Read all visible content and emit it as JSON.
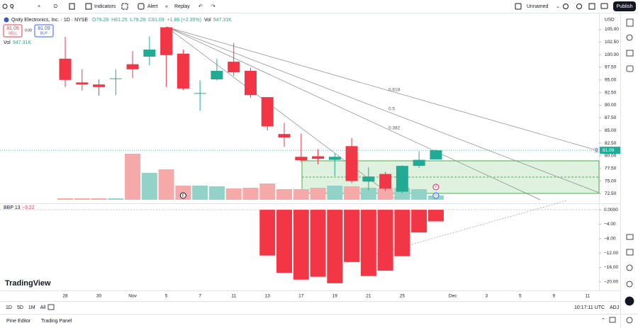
{
  "toolbar": {
    "symbol_search": "Q",
    "interval": "D",
    "indicators": "Indicators",
    "alert": "Alert",
    "replay": "Replay",
    "layout_name": "Unnamed",
    "publish": "Publish"
  },
  "legend": {
    "title": "Qnity Electronics, Inc. · 1D · NYSE",
    "ohlc": [
      "O79.28",
      "H81.25",
      "L79.28",
      "C81.09",
      "+1.86 (+2.35%)"
    ],
    "volume_label": "Vol",
    "volume_value": "947.31K"
  },
  "trade": {
    "sell_price": "81.09",
    "sell": "SELL",
    "spread": "0.00",
    "buy_price": "81.09",
    "buy": "BUY"
  },
  "volume_row": {
    "label": "Vol",
    "value": "947.31K"
  },
  "chart_data": {
    "type": "candlestick",
    "categories": [
      "28",
      null,
      "30",
      null,
      "Nov",
      null,
      "5",
      null,
      "7",
      null,
      "11",
      null,
      "13",
      null,
      "17",
      null,
      "19",
      null,
      "21",
      null,
      "25",
      null,
      null
    ],
    "future_categories": [
      "Dec",
      null,
      "3",
      null,
      "5",
      null,
      "9",
      null,
      "11"
    ],
    "open": [
      99.2,
      94.5,
      94.1,
      95.2,
      98.1,
      99.6,
      105.4,
      100.2,
      92.3,
      95.1,
      98.6,
      96.8,
      91.6,
      84.3,
      79.8,
      79.9,
      79.2,
      81.9,
      74.9,
      76.4,
      72.9,
      78.0,
      79.28
    ],
    "high": [
      103.5,
      97.1,
      95.1,
      97.1,
      100.7,
      103.6,
      105.5,
      101.0,
      94.9,
      99.2,
      102.3,
      97.4,
      91.6,
      86.5,
      84.4,
      81.3,
      80.5,
      83.5,
      77.7,
      76.8,
      78.1,
      80.9,
      81.25
    ],
    "low": [
      93.6,
      92.9,
      91.9,
      92.0,
      95.4,
      97.9,
      93.6,
      93.0,
      88.9,
      94.9,
      95.8,
      91.5,
      85.0,
      81.8,
      78.8,
      78.3,
      76.0,
      74.6,
      73.2,
      73.0,
      72.6,
      77.6,
      79.28
    ],
    "close": [
      95.0,
      94.1,
      93.6,
      95.3,
      97.1,
      101.0,
      99.9,
      93.3,
      92.4,
      96.8,
      96.5,
      92.0,
      85.8,
      83.6,
      79.1,
      79.4,
      79.8,
      75.0,
      75.9,
      73.5,
      78.0,
      79.2,
      81.09
    ],
    "volume": [
      316000,
      316000,
      316000,
      316000,
      10263000,
      6000000,
      6789000,
      3158000,
      3158000,
      3000000,
      2526000,
      2684000,
      3631000,
      2368000,
      2368000,
      2684000,
      3158000,
      3000000,
      2684000,
      2526000,
      2684000,
      2368000,
      947310
    ],
    "bbp": [
      null,
      null,
      null,
      null,
      null,
      null,
      null,
      null,
      null,
      null,
      null,
      null,
      -12.7,
      -17.5,
      -19.4,
      -18.6,
      -20.4,
      -14.5,
      -18.4,
      -16.9,
      -12.9,
      -6.3,
      -3.22
    ],
    "bbp_name": "BBP 13",
    "bbp_last_label": "−3.22",
    "currency": "USD",
    "ylim": [
      71.3,
      108.0
    ],
    "yticks": [
      {
        "value": 72.5,
        "label": "72.50"
      },
      {
        "value": 75,
        "label": "75.00"
      },
      {
        "value": 77.5,
        "label": "77.50"
      },
      {
        "value": 80,
        "label": "80.00"
      },
      {
        "value": 82.5,
        "label": "82.50"
      },
      {
        "value": 85,
        "label": "85.00"
      },
      {
        "value": 87.5,
        "label": "87.50"
      },
      {
        "value": 90,
        "label": "90.00"
      },
      {
        "value": 92.5,
        "label": "92.50"
      },
      {
        "value": 95,
        "label": "95.00"
      },
      {
        "value": 97.5,
        "label": "97.50"
      },
      {
        "value": 100,
        "label": "100.00"
      },
      {
        "value": 102.5,
        "label": "102.50"
      },
      {
        "value": 105,
        "label": "105.00"
      }
    ],
    "y2lim": [
      -22,
      1.6
    ],
    "y2ticks": [
      {
        "value": 0,
        "label": "0.0000"
      },
      {
        "value": -4,
        "label": "−4.00"
      },
      {
        "value": -8,
        "label": "−8.00"
      },
      {
        "value": -12,
        "label": "−12.00"
      },
      {
        "value": -16,
        "label": "−16.00"
      },
      {
        "value": -20,
        "label": "−20.00"
      }
    ],
    "up_color": "#22ab94",
    "down_color": "#f23645",
    "up_volume_color": "#92d2c8",
    "down_volume_color": "#f6a9a9",
    "bbp_color": "#f23645",
    "fib_levels": [
      "0.618",
      "0.5",
      "0.382"
    ],
    "events": [
      "E",
      "F",
      "D"
    ]
  },
  "logo": "TradingView",
  "timebar": {
    "ranges": [
      "1D",
      "5D",
      "1M",
      "All"
    ],
    "clock": "10:17:11 UTC",
    "adj": "ADJ"
  },
  "bottom_panel": {
    "tabs": [
      "Pine Editor",
      "Trading Panel"
    ]
  }
}
